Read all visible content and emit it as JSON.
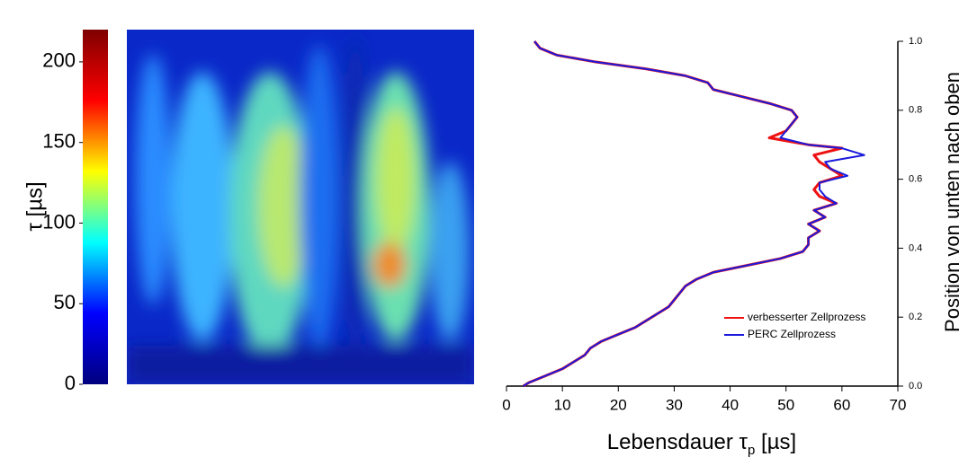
{
  "chart_data": [
    {
      "type": "heatmap",
      "colorbar_label": "τ [µs]",
      "clim": [
        0,
        220
      ],
      "cticks": [
        0,
        50,
        100,
        150,
        200
      ],
      "colormap": [
        "#00007f",
        "#0000ff",
        "#00ffff",
        "#ffff00",
        "#ff0000",
        "#7f0000"
      ]
    },
    {
      "type": "line",
      "x_label": [
        "Lebensdauer τ",
        "p",
        " [µs]"
      ],
      "y_label": "Position von unten nach oben",
      "xlim": [
        0,
        70
      ],
      "xticks": [
        0,
        10,
        20,
        30,
        40,
        50,
        60,
        70
      ],
      "ylim": [
        0,
        1
      ],
      "yticks": [
        {
          "value": 0,
          "label": "0.0"
        },
        {
          "value": 0.2,
          "label": "0.2"
        },
        {
          "value": 0.4,
          "label": "0.4"
        },
        {
          "value": 0.6,
          "label": "0.6"
        },
        {
          "value": 0.8,
          "label": "0.8"
        },
        {
          "value": 1,
          "label": "1.0"
        }
      ],
      "positions": [
        1.0,
        0.98,
        0.96,
        0.94,
        0.92,
        0.9,
        0.88,
        0.86,
        0.84,
        0.82,
        0.8,
        0.78,
        0.76,
        0.74,
        0.72,
        0.7,
        0.69,
        0.67,
        0.65,
        0.63,
        0.61,
        0.59,
        0.57,
        0.55,
        0.53,
        0.51,
        0.49,
        0.47,
        0.45,
        0.43,
        0.41,
        0.39,
        0.37,
        0.35,
        0.33,
        0.31,
        0.29,
        0.27,
        0.25,
        0.23,
        0.21,
        0.19,
        0.17,
        0.15,
        0.13,
        0.11,
        0.09,
        0.07,
        0.05,
        0.03,
        0.01,
        0.0
      ],
      "legend": "bottom-right",
      "series": [
        {
          "name": "verbesserter Zellprozess",
          "color": "#ee1111",
          "values": [
            5,
            6,
            9,
            16,
            25,
            32,
            36,
            37,
            42,
            47,
            51,
            52,
            51,
            50,
            47,
            54,
            60,
            55,
            56,
            58,
            60,
            56,
            55,
            56,
            59,
            55,
            57,
            54,
            56,
            54,
            54,
            53,
            49,
            43,
            37,
            34,
            32,
            31,
            30,
            29,
            27,
            25,
            23,
            20,
            17,
            15,
            14,
            12,
            10,
            7,
            4,
            3
          ]
        },
        {
          "name": "PERC Zellprozess",
          "color": "#1a1adc",
          "values": [
            5,
            6,
            9,
            16,
            25,
            32,
            36,
            37,
            42,
            47,
            51,
            52,
            51,
            50,
            49,
            54,
            60,
            64,
            57,
            58,
            61,
            56,
            56,
            57,
            59,
            55,
            57,
            54,
            56,
            54,
            54,
            53,
            49,
            43,
            37,
            34,
            32,
            31,
            30,
            29,
            27,
            25,
            23,
            20,
            17,
            15,
            14,
            12,
            10,
            7,
            4,
            3
          ]
        }
      ]
    }
  ]
}
